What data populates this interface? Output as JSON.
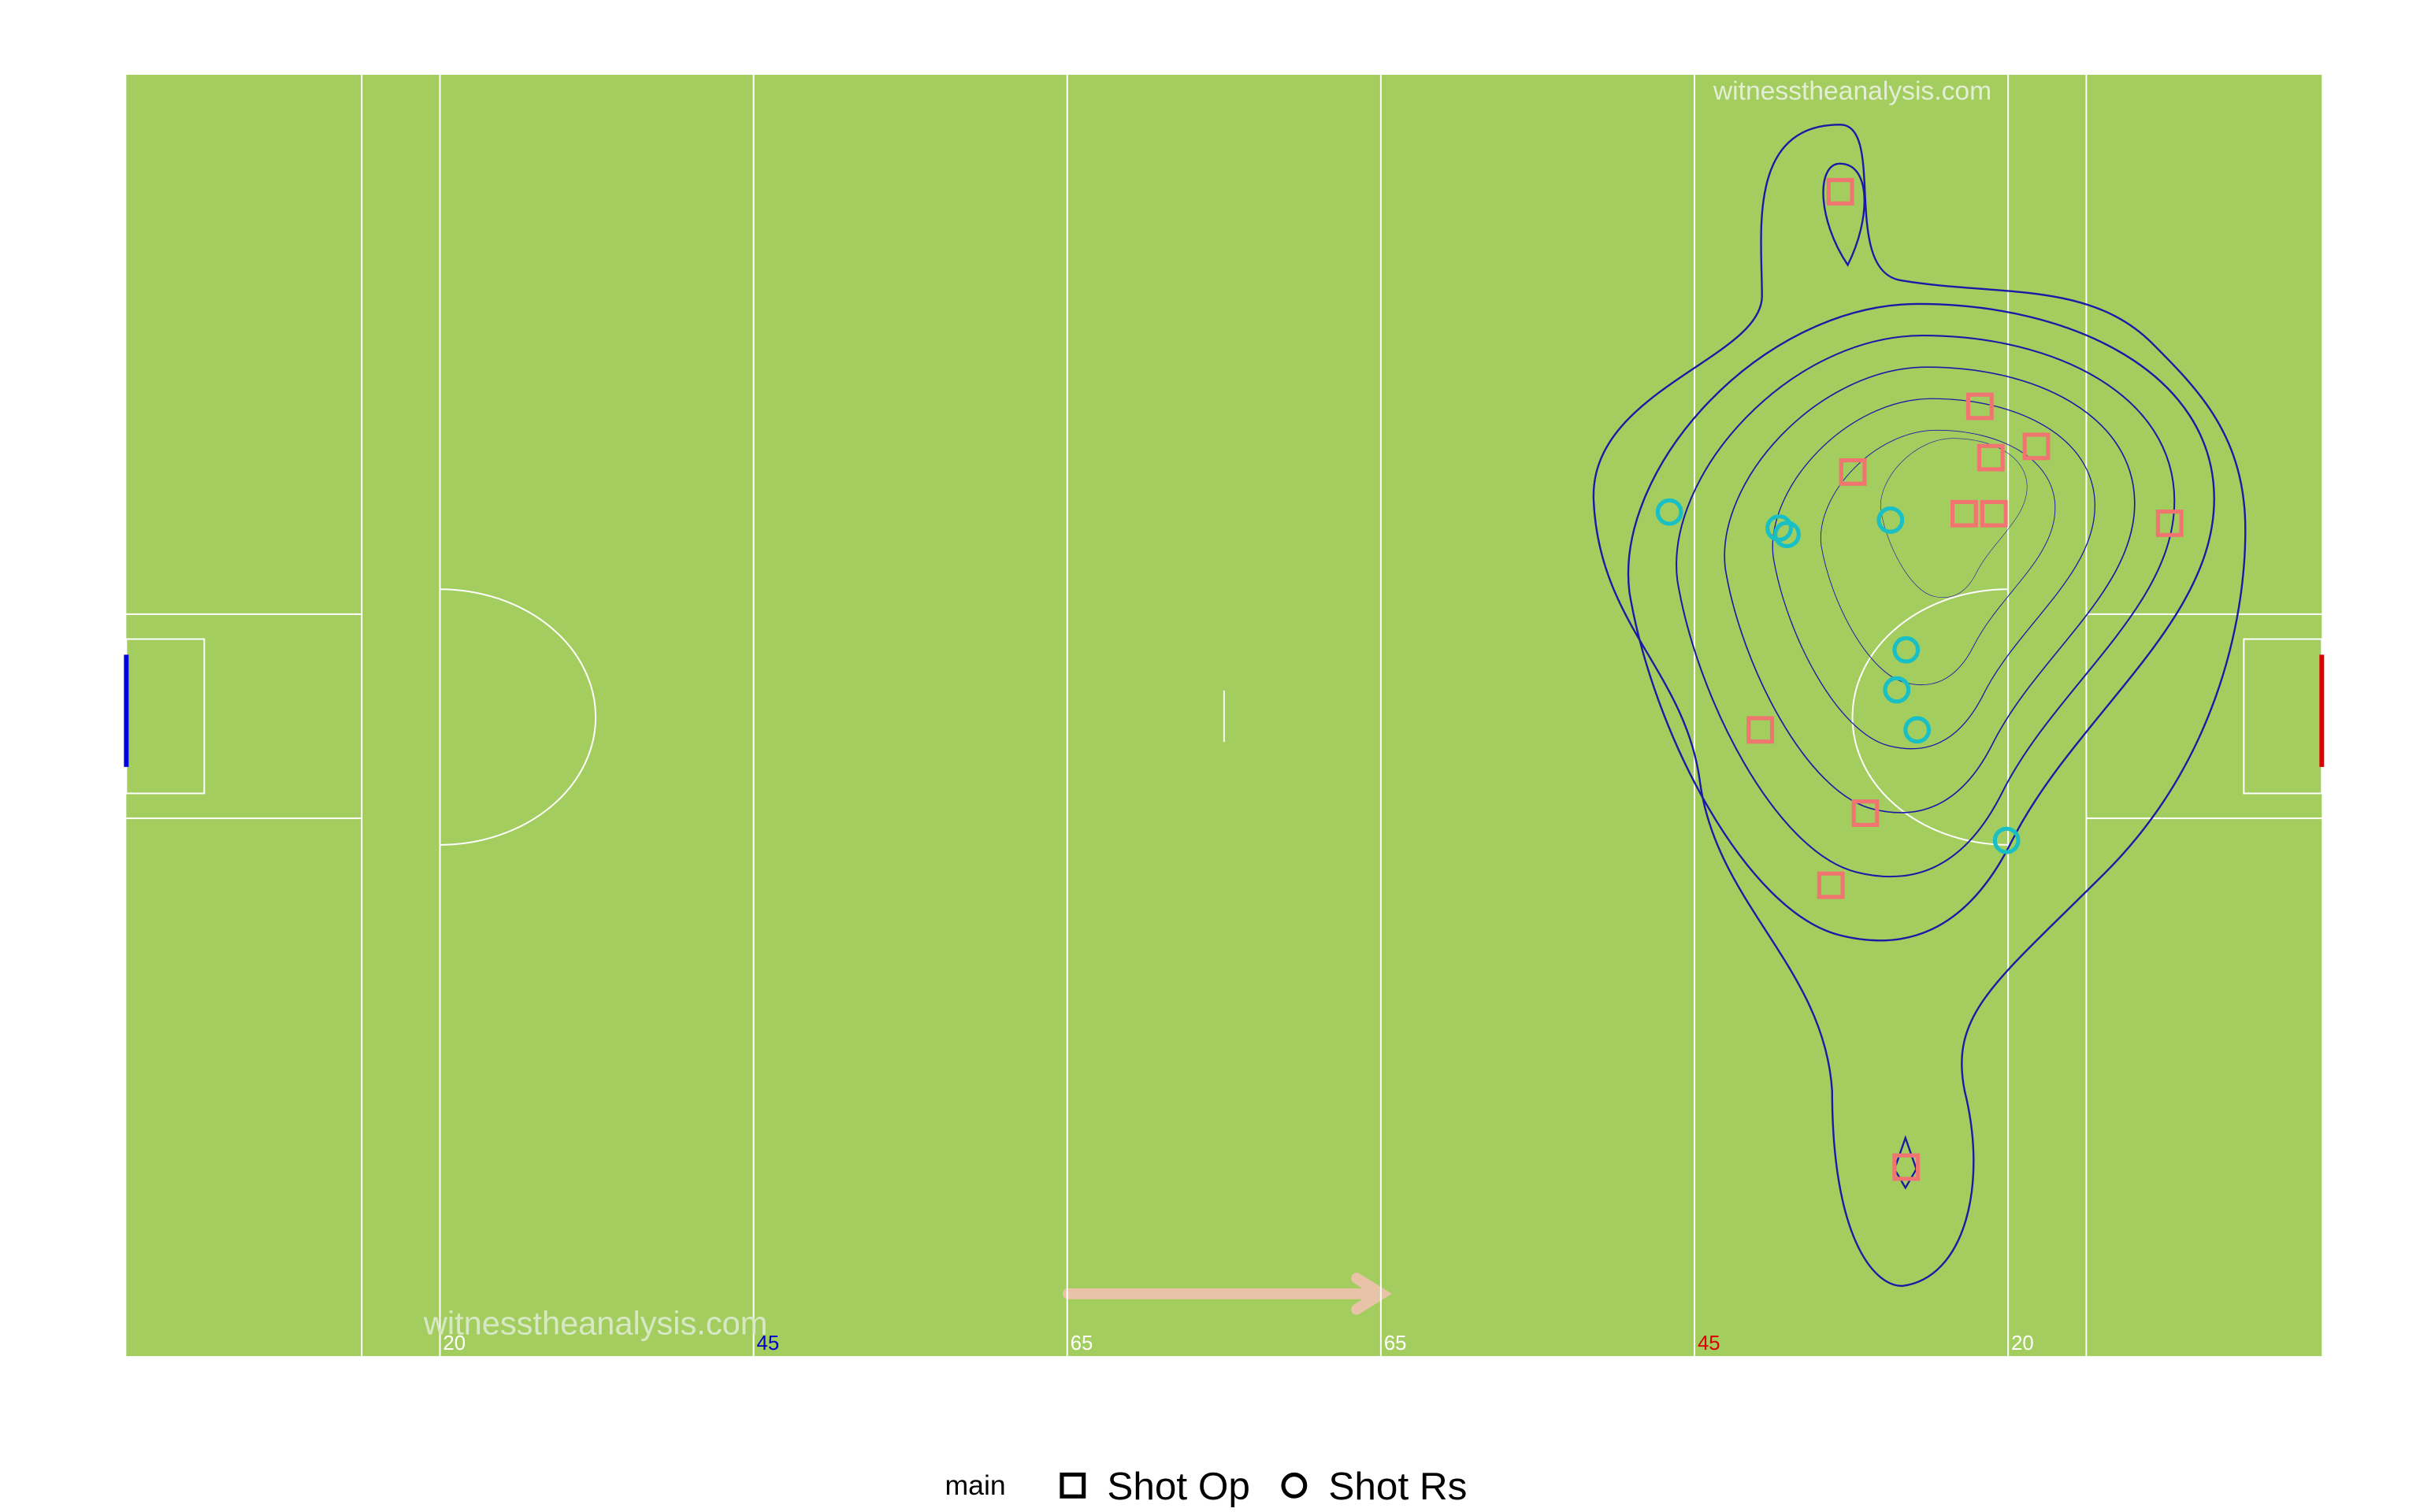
{
  "chart_data": {
    "type": "scatter",
    "xlim": [
      0,
      140
    ],
    "ylim": [
      0,
      80
    ],
    "xticks": [
      {
        "value": 20,
        "label": "20"
      },
      {
        "value": 40,
        "label": "45"
      },
      {
        "value": 60,
        "label": "65"
      },
      {
        "value": 80,
        "label": "65"
      },
      {
        "value": 100,
        "label": "45"
      },
      {
        "value": 120,
        "label": "20"
      }
    ],
    "xtick_colors": [
      "#ffffff",
      "#0000cc",
      "#ffffff",
      "#ffffff",
      "#dd0000",
      "#ffffff"
    ],
    "watermarks": [
      "witnesstheanalysis.com",
      "witnesstheanalysis.com"
    ],
    "legend_title": "main",
    "series": [
      {
        "name": "Shot Op",
        "color": "#f07470",
        "marker": "square",
        "x": [
          109.3,
          118.2,
          121.8,
          118.9,
          110.1,
          117.2,
          119.1,
          130.3,
          104.2,
          110.9,
          108.7,
          113.5
        ],
        "values": [
          72.7,
          59.3,
          56.8,
          56.1,
          55.2,
          52.6,
          52.6,
          52.0,
          39.1,
          33.9,
          29.4,
          11.8
        ]
      },
      {
        "name": "Shot Rs",
        "color": "#18bfc4",
        "marker": "circle",
        "x": [
          98.4,
          105.4,
          105.9,
          112.5,
          113.5,
          112.9,
          114.2,
          119.9
        ],
        "values": [
          52.7,
          51.7,
          51.3,
          52.2,
          44.1,
          41.6,
          39.1,
          32.2
        ]
      }
    ]
  }
}
